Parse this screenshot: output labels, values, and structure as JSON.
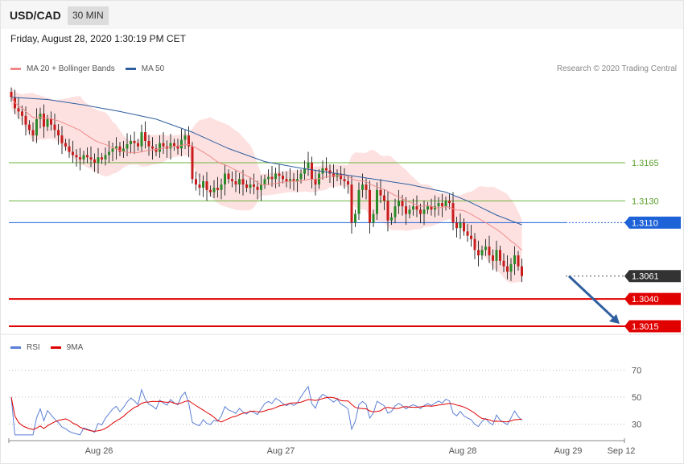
{
  "header": {
    "symbol": "USD/CAD",
    "timeframe": "30 MIN"
  },
  "date_text": "Friday, August 28, 2020 1:30:19 PM CET",
  "legend": [
    {
      "label": "MA 20 + Bollinger Bands",
      "color": "#f08a8a"
    },
    {
      "label": "MA 50",
      "color": "#2f5f9e"
    }
  ],
  "credit": "Research © 2020 Trading Central",
  "rsi_legend": [
    {
      "label": "RSI",
      "color": "#5b7fd6"
    },
    {
      "label": "9MA",
      "color": "#e00000"
    }
  ],
  "chart_data": {
    "type": "candlestick",
    "ylim": [
      1.2995,
      1.3255
    ],
    "x_ticks": [
      "Aug 26",
      "Aug 27",
      "Aug 28",
      "Aug 29",
      "Sep 12"
    ],
    "levels": [
      {
        "value": 1.3165,
        "label": "1.3165",
        "kind": "resistance",
        "color": "#6bb23b"
      },
      {
        "value": 1.313,
        "label": "1.3130",
        "kind": "resistance",
        "color": "#6bb23b"
      },
      {
        "value": 1.311,
        "label": "1.3110",
        "kind": "pivot",
        "color": "#1e62d8"
      },
      {
        "value": 1.3061,
        "label": "1.3061",
        "kind": "last",
        "color": "#333333"
      },
      {
        "value": 1.304,
        "label": "1.3040",
        "kind": "support",
        "color": "#e00000"
      },
      {
        "value": 1.3015,
        "label": "1.3015",
        "kind": "support",
        "color": "#e00000"
      }
    ],
    "closes": [
      1.3225,
      1.3215,
      1.3212,
      1.3208,
      1.32,
      1.3195,
      1.319,
      1.3205,
      1.321,
      1.3198,
      1.3205,
      1.32,
      1.3195,
      1.319,
      1.3183,
      1.318,
      1.3175,
      1.3172,
      1.317,
      1.3168,
      1.3172,
      1.317,
      1.3168,
      1.3165,
      1.317,
      1.3168,
      1.3172,
      1.3175,
      1.3178,
      1.318,
      1.3175,
      1.3178,
      1.3182,
      1.3185,
      1.3183,
      1.318,
      1.3193,
      1.3185,
      1.318,
      1.3178,
      1.3175,
      1.3183,
      1.318,
      1.3178,
      1.3183,
      1.318,
      1.3178,
      1.3186,
      1.319,
      1.318,
      1.315,
      1.3145,
      1.3142,
      1.3148,
      1.314,
      1.3138,
      1.3142,
      1.314,
      1.3145,
      1.3155,
      1.315,
      1.3148,
      1.3145,
      1.315,
      1.3145,
      1.3142,
      1.3145,
      1.3143,
      1.314,
      1.3145,
      1.315,
      1.3152,
      1.315,
      1.3155,
      1.3153,
      1.315,
      1.3148,
      1.315,
      1.3148,
      1.315,
      1.3155,
      1.316,
      1.3165,
      1.315,
      1.3145,
      1.3155,
      1.316,
      1.3158,
      1.3155,
      1.3152,
      1.3155,
      1.315,
      1.3148,
      1.3145,
      1.311,
      1.3118,
      1.314,
      1.3145,
      1.314,
      1.311,
      1.3118,
      1.314,
      1.3135,
      1.313,
      1.3112,
      1.3115,
      1.3125,
      1.313,
      1.3125,
      1.3118,
      1.3122,
      1.3125,
      1.3122,
      1.3118,
      1.3122,
      1.3125,
      1.3122,
      1.3125,
      1.3128,
      1.3125,
      1.313,
      1.3128,
      1.311,
      1.3105,
      1.311,
      1.3102,
      1.3098,
      1.3095,
      1.3085,
      1.308,
      1.3085,
      1.3088,
      1.308,
      1.3075,
      1.3085,
      1.3075,
      1.307,
      1.3065,
      1.3072,
      1.308,
      1.307,
      1.3061
    ],
    "ma50_points": [
      [
        0,
        1.3225
      ],
      [
        10,
        1.3223
      ],
      [
        20,
        1.3218
      ],
      [
        30,
        1.3212
      ],
      [
        40,
        1.3205
      ],
      [
        50,
        1.3193
      ],
      [
        60,
        1.3178
      ],
      [
        70,
        1.3166
      ],
      [
        80,
        1.316
      ],
      [
        90,
        1.3155
      ],
      [
        100,
        1.315
      ],
      [
        110,
        1.3145
      ],
      [
        120,
        1.3138
      ],
      [
        126,
        1.313
      ],
      [
        134,
        1.3117
      ],
      [
        141,
        1.3108
      ]
    ],
    "rsi": {
      "levels": [
        70,
        50,
        30
      ],
      "ylim": [
        20,
        80
      ]
    }
  },
  "tick_labels": {
    "rsi_70": "70",
    "rsi_50": "50",
    "rsi_30": "30"
  }
}
